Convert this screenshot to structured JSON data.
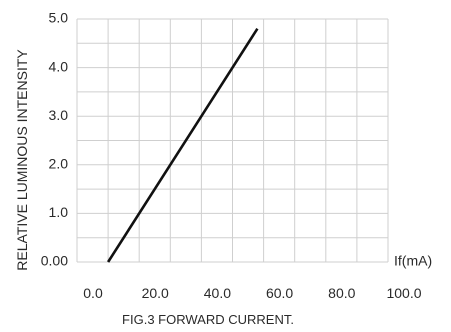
{
  "chart_data": {
    "type": "line",
    "title": "",
    "caption": "FIG.3 FORWARD CURRENT.",
    "ylabel": "RELATIVE LUMINOUS INTENSITY",
    "xunit_label": "If(mA)",
    "xlim": [
      0,
      100
    ],
    "ylim": [
      0,
      5
    ],
    "grid": true,
    "x_tick_labels": [
      "0.0",
      "20.0",
      "40.0",
      "60.0",
      "80.0",
      "100.0"
    ],
    "y_tick_labels": [
      "0.00",
      "1.0",
      "2.0",
      "3.0",
      "4.0",
      "5.0"
    ],
    "series": [
      {
        "x": [
          10,
          40,
          58
        ],
        "y": [
          0,
          3.0,
          4.8
        ]
      }
    ],
    "colors": {
      "line": "#111111",
      "grid": "#cfcfcf",
      "text": "#2a2a2a"
    }
  }
}
